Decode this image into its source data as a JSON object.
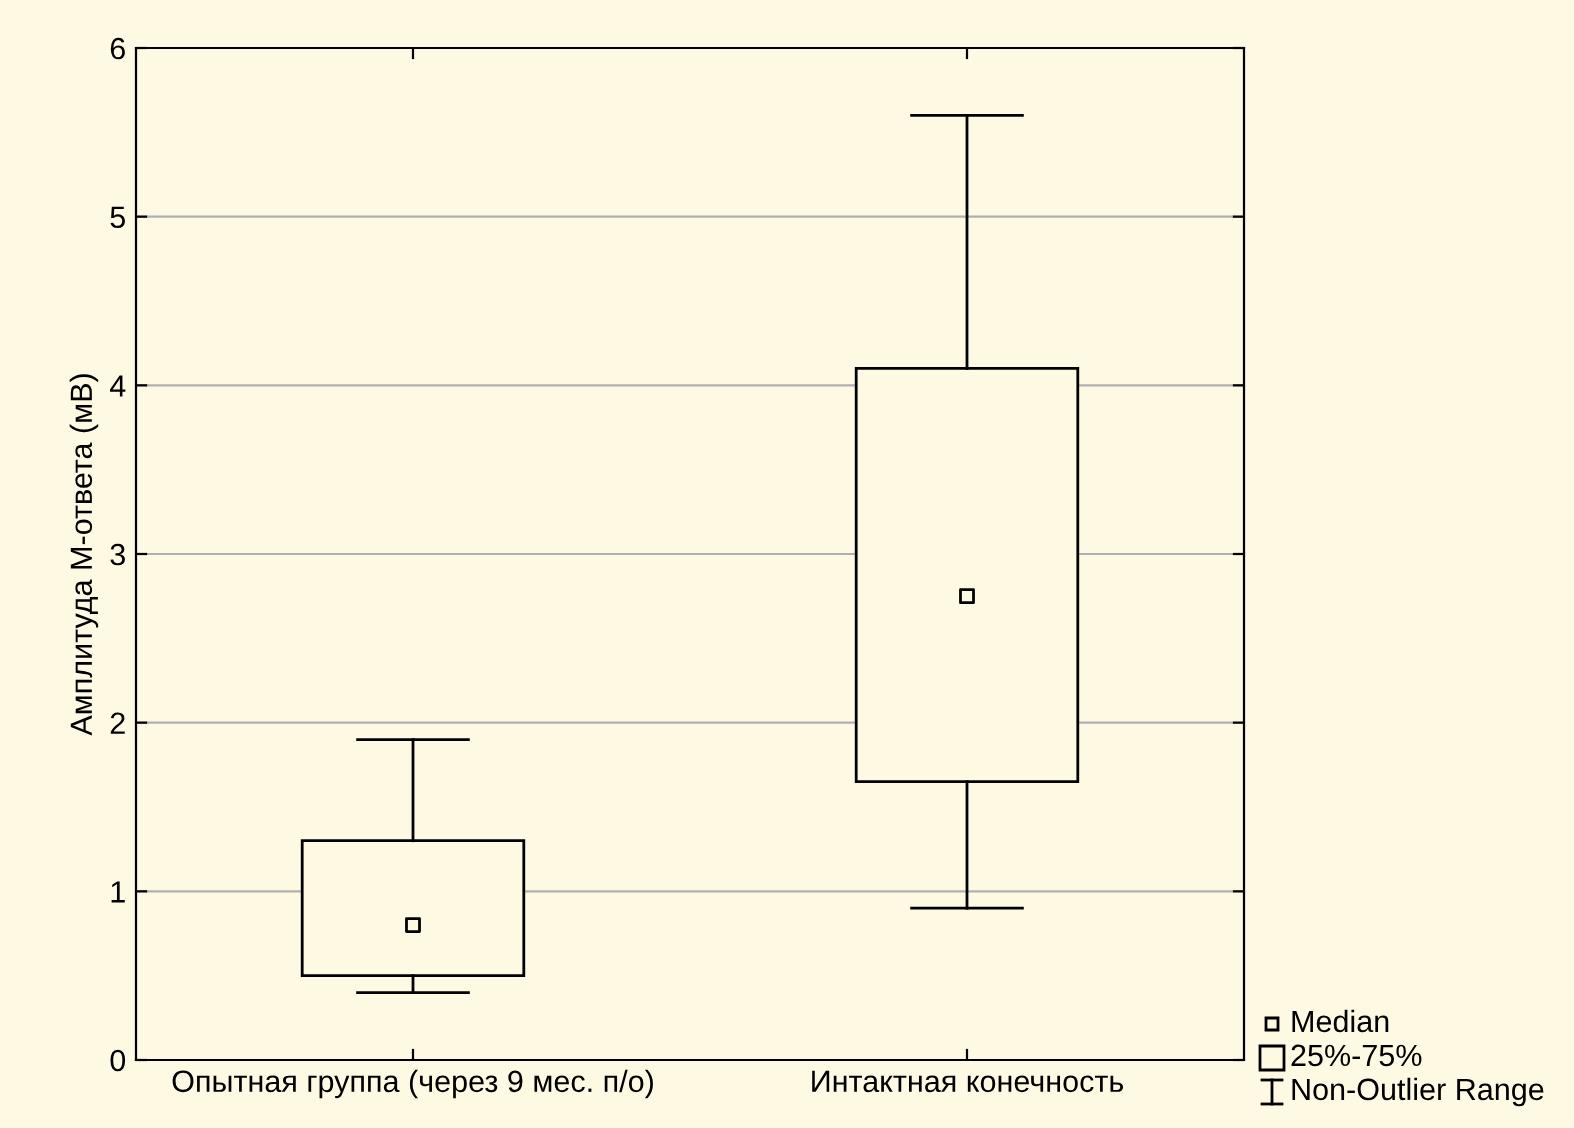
{
  "chart_data": {
    "type": "box",
    "ylabel": "Амплитуда М-ответа (мВ)",
    "categories": [
      "Опытная группа (через 9 мес. п/о)",
      "Интактная конечность"
    ],
    "boxes": [
      {
        "low": 0.4,
        "q1": 0.5,
        "median": 0.8,
        "q3": 1.3,
        "high": 1.9
      },
      {
        "low": 0.9,
        "q1": 1.65,
        "median": 2.75,
        "q3": 4.1,
        "high": 5.6
      }
    ],
    "color": "#000000",
    "ylim": [
      0,
      6
    ],
    "yticks": [
      0,
      1,
      2,
      3,
      4,
      5,
      6
    ],
    "grid": "y",
    "annotations": [
      "Median",
      "25%-75%",
      "Non-Outlier Range"
    ]
  }
}
